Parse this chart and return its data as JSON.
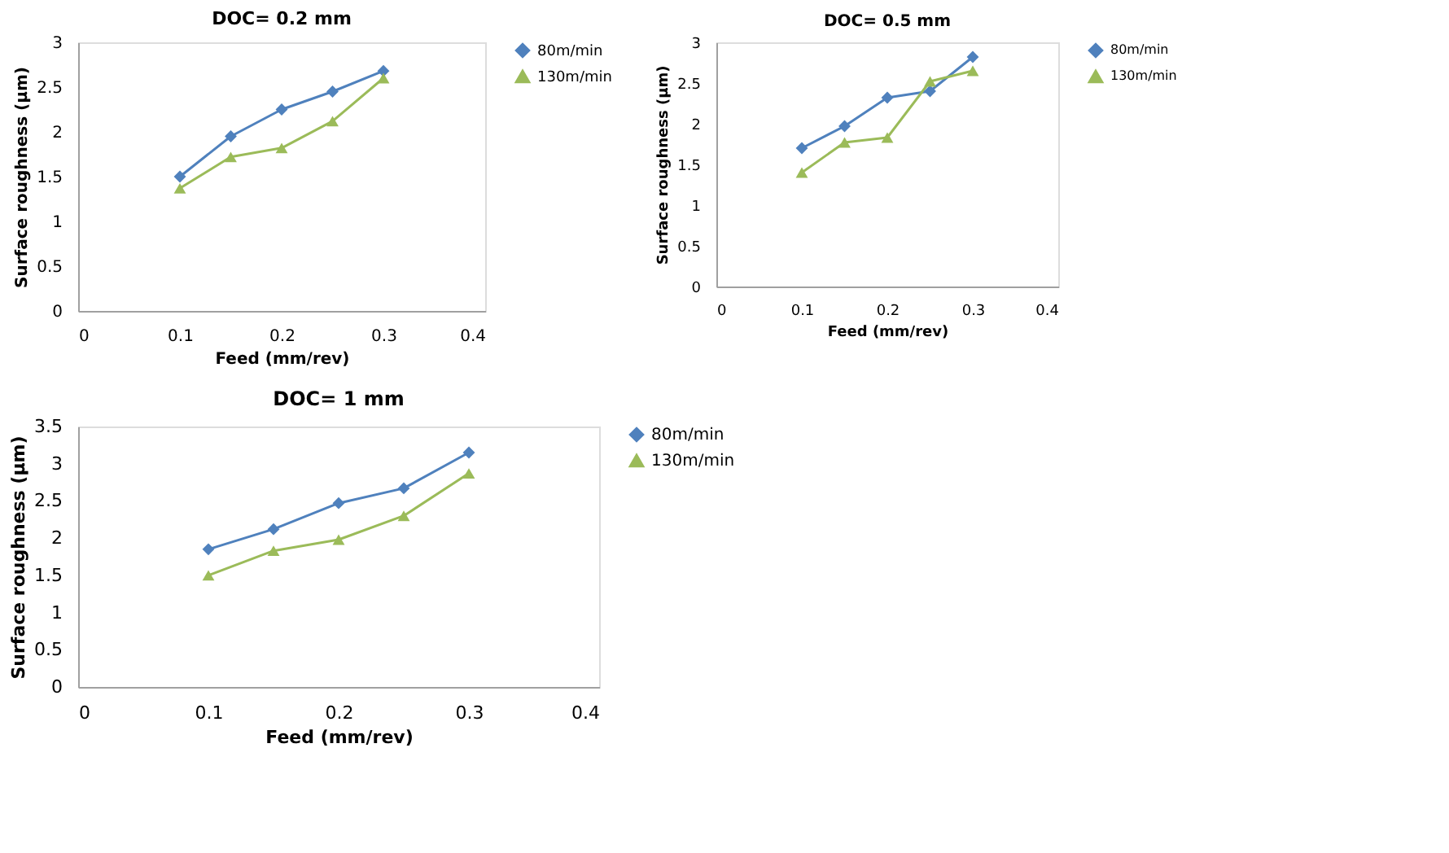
{
  "chart_data": [
    {
      "type": "line",
      "title": "DOC= 0.2 mm",
      "xlabel": "Feed (mm/rev)",
      "ylabel": "Surface roughness (μm)",
      "x": [
        0.1,
        0.15,
        0.2,
        0.25,
        0.3
      ],
      "xlim": [
        0,
        0.4
      ],
      "xticks": [
        0,
        0.1,
        0.2,
        0.3,
        0.4
      ],
      "ylim": [
        0,
        3
      ],
      "yticks": [
        0,
        0.5,
        1,
        1.5,
        2,
        2.5,
        3
      ],
      "grid": false,
      "legend": "right",
      "line_style": "solid",
      "series": [
        {
          "name": "80m/min",
          "color": "#4f81bd",
          "marker": "diamond",
          "values": [
            1.5,
            1.95,
            2.25,
            2.45,
            2.68
          ]
        },
        {
          "name": "130m/min",
          "color": "#9bbb59",
          "marker": "triangle",
          "values": [
            1.37,
            1.72,
            1.82,
            2.12,
            2.6
          ]
        }
      ]
    },
    {
      "type": "line",
      "title": "DOC= 0.5 mm",
      "xlabel": "Feed (mm/rev)",
      "ylabel": "Surface roughness (μm)",
      "x": [
        0.1,
        0.15,
        0.2,
        0.25,
        0.3
      ],
      "xlim": [
        0,
        0.4
      ],
      "xticks": [
        0,
        0.1,
        0.2,
        0.3,
        0.4
      ],
      "ylim": [
        0,
        3
      ],
      "yticks": [
        0,
        0.5,
        1,
        1.5,
        2,
        2.5,
        3
      ],
      "grid": false,
      "legend": "right",
      "line_style": "solid",
      "series": [
        {
          "name": "80m/min",
          "color": "#4f81bd",
          "marker": "diamond",
          "values": [
            1.7,
            1.97,
            2.32,
            2.4,
            2.82
          ]
        },
        {
          "name": "130m/min",
          "color": "#9bbb59",
          "marker": "triangle",
          "values": [
            1.4,
            1.77,
            1.83,
            2.52,
            2.65
          ]
        }
      ]
    },
    {
      "type": "line",
      "title": "DOC= 1 mm",
      "xlabel": "Feed (mm/rev)",
      "ylabel": "Surface roughness (μm)",
      "x": [
        0.1,
        0.15,
        0.2,
        0.25,
        0.3
      ],
      "xlim": [
        0,
        0.4
      ],
      "xticks": [
        0,
        0.1,
        0.2,
        0.3,
        0.4
      ],
      "ylim": [
        0,
        3.5
      ],
      "yticks": [
        0,
        0.5,
        1,
        1.5,
        2,
        2.5,
        3,
        3.5
      ],
      "grid": false,
      "legend": "right",
      "line_style": "solid",
      "series": [
        {
          "name": "80m/min",
          "color": "#4f81bd",
          "marker": "diamond",
          "values": [
            1.85,
            2.12,
            2.47,
            2.67,
            3.15
          ]
        },
        {
          "name": "130m/min",
          "color": "#9bbb59",
          "marker": "triangle",
          "values": [
            1.5,
            1.83,
            1.98,
            2.3,
            2.87
          ]
        }
      ]
    }
  ]
}
